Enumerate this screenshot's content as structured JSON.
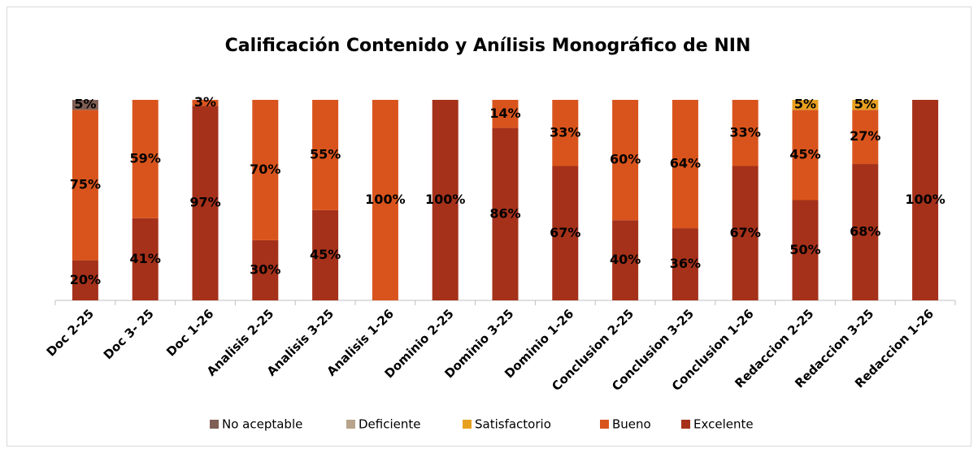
{
  "chart_data": {
    "type": "stacked_bar",
    "title": "Calificación Contenido y Anílisis Monográfico de NIN",
    "categories": [
      "Doc 2-25",
      "Doc 3- 25",
      "Doc 1-26",
      "Analisis 2-25",
      "Analisis 3-25",
      "Analisis 1-26",
      "Dominio  2-25",
      "Dominio  3-25",
      "Dominio  1-26",
      "Conclusion 2-25",
      "Conclusion 3-25",
      "Conclusion 1-26",
      "Redaccion 2-25",
      "Redaccion 3-25",
      "Redaccion 1-26"
    ],
    "ylim": [
      0,
      100
    ],
    "legend": "bottom",
    "series": [
      {
        "name": "Excelente",
        "color": "#a5311a",
        "values": [
          20,
          41,
          97,
          30,
          45,
          0,
          100,
          86,
          67,
          40,
          36,
          67,
          50,
          68,
          100
        ],
        "value_labels": [
          "20%",
          "41%",
          "97%",
          "30%",
          "45%",
          null,
          "100%",
          "86%",
          "67%",
          "40%",
          "36%",
          "67%",
          "50%",
          "68%",
          "100%"
        ]
      },
      {
        "name": "Bueno",
        "color": "#d9541c",
        "values": [
          75,
          59,
          3,
          70,
          55,
          100,
          0,
          14,
          33,
          60,
          64,
          33,
          45,
          27,
          0
        ],
        "value_labels": [
          "75%",
          "59%",
          "3%",
          "70%",
          "55%",
          "100%",
          null,
          "14%",
          "33%",
          "60%",
          "64%",
          "33%",
          "45%",
          "27%",
          null
        ]
      },
      {
        "name": "Satisfactorio",
        "color": "#e8a020",
        "values": [
          0,
          0,
          0,
          0,
          0,
          0,
          0,
          0,
          0,
          0,
          0,
          0,
          5,
          5,
          0
        ],
        "value_labels": [
          null,
          null,
          null,
          null,
          null,
          null,
          null,
          null,
          null,
          null,
          null,
          null,
          "5%",
          "5%",
          null
        ]
      },
      {
        "name": "Deficiente",
        "color": "#b8a48c",
        "values": [
          0,
          0,
          0,
          0,
          0,
          0,
          0,
          0,
          0,
          0,
          0,
          0,
          0,
          0,
          0
        ],
        "value_labels": [
          null,
          null,
          null,
          null,
          null,
          null,
          null,
          null,
          null,
          null,
          null,
          null,
          null,
          null,
          null
        ]
      },
      {
        "name": "No aceptable",
        "color": "#7f5f55",
        "values": [
          5,
          0,
          0,
          0,
          0,
          0,
          0,
          0,
          0,
          0,
          0,
          0,
          0,
          0,
          0
        ],
        "value_labels": [
          "5%",
          null,
          null,
          null,
          null,
          null,
          null,
          null,
          null,
          null,
          null,
          null,
          null,
          null,
          null
        ]
      }
    ]
  }
}
